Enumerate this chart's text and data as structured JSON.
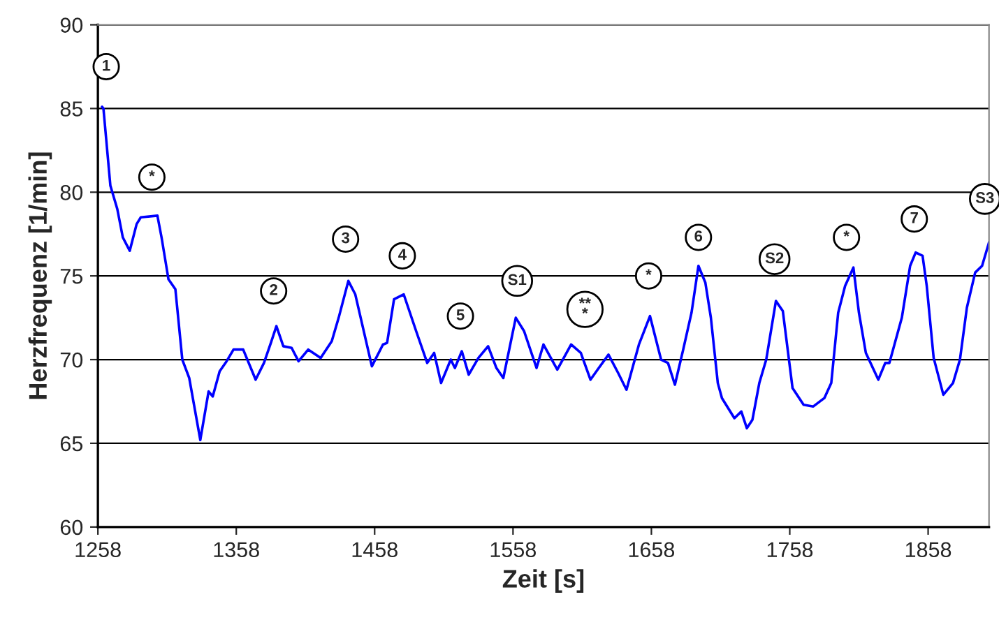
{
  "chart_data": {
    "type": "line",
    "xlabel": "Zeit [s]",
    "ylabel": "Herzfrequenz [1/min]",
    "x": [
      1261,
      1262,
      1267,
      1272,
      1276,
      1281,
      1286,
      1289,
      1301,
      1304,
      1309,
      1314,
      1319,
      1324,
      1332,
      1338,
      1341,
      1346,
      1351,
      1356,
      1363,
      1372,
      1378,
      1383,
      1387,
      1392,
      1398,
      1403,
      1410,
      1419,
      1427,
      1432,
      1439,
      1444,
      1456,
      1464,
      1467,
      1472,
      1479,
      1488,
      1496,
      1501,
      1506,
      1513,
      1516,
      1521,
      1526,
      1533,
      1540,
      1546,
      1551,
      1560,
      1566,
      1575,
      1580,
      1590,
      1600,
      1607,
      1614,
      1620,
      1627,
      1634,
      1640,
      1649,
      1657,
      1665,
      1670,
      1675,
      1681,
      1687,
      1692,
      1697,
      1701,
      1706,
      1709,
      1718,
      1723,
      1727,
      1731,
      1736,
      1741,
      1748,
      1753,
      1760,
      1768,
      1775,
      1783,
      1788,
      1793,
      1798,
      1804,
      1808,
      1813,
      1822,
      1827,
      1830,
      1839,
      1845,
      1849,
      1854,
      1857,
      1862,
      1869,
      1876,
      1881,
      1886,
      1892,
      1897,
      1902
    ],
    "series": [
      {
        "color": "#0000ff",
        "values": [
          85.1,
          85.0,
          80.4,
          79.0,
          77.3,
          76.5,
          78.1,
          78.5,
          78.6,
          77.3,
          74.8,
          74.2,
          70.0,
          68.9,
          65.2,
          68.1,
          67.8,
          69.3,
          69.9,
          70.6,
          70.6,
          68.8,
          69.8,
          71.0,
          72.0,
          70.8,
          70.7,
          69.9,
          70.6,
          70.1,
          71.1,
          72.5,
          74.7,
          73.9,
          69.6,
          70.9,
          71.0,
          73.6,
          73.9,
          71.7,
          69.8,
          70.4,
          68.6,
          70.0,
          69.5,
          70.5,
          69.1,
          70.1,
          70.8,
          69.5,
          68.9,
          72.5,
          71.7,
          69.5,
          70.9,
          69.4,
          70.9,
          70.4,
          68.8,
          69.5,
          70.3,
          69.2,
          68.2,
          70.9,
          72.6,
          70.0,
          69.8,
          68.5,
          70.6,
          72.8,
          75.6,
          74.6,
          72.5,
          68.6,
          67.7,
          66.5,
          66.9,
          65.9,
          66.4,
          68.6,
          70.0,
          73.5,
          72.9,
          68.3,
          67.3,
          67.2,
          67.7,
          68.6,
          72.8,
          74.4,
          75.5,
          72.8,
          70.4,
          68.8,
          69.8,
          69.8,
          72.5,
          75.6,
          76.4,
          76.2,
          74.4,
          70.1,
          67.9,
          68.6,
          70.0,
          73.1,
          75.2,
          75.6,
          77.0
        ]
      }
    ],
    "xlim": [
      1258,
      1902
    ],
    "xticks": [
      1258,
      1358,
      1458,
      1558,
      1658,
      1758,
      1858
    ],
    "ylim": [
      60,
      90
    ],
    "yticks": [
      60,
      65,
      70,
      75,
      80,
      85,
      90
    ],
    "grid": "y",
    "legend": false,
    "marker": "none",
    "line_style": "solid",
    "annotations": [
      {
        "text": "1",
        "x": 1264,
        "y": 87.5
      },
      {
        "text": "*",
        "x": 1297,
        "y": 80.9
      },
      {
        "text": "2",
        "x": 1385,
        "y": 74.1
      },
      {
        "text": "3",
        "x": 1437,
        "y": 77.2
      },
      {
        "text": "4",
        "x": 1478,
        "y": 76.2
      },
      {
        "text": "5",
        "x": 1520,
        "y": 72.6
      },
      {
        "text": "S1",
        "x": 1561,
        "y": 74.7
      },
      {
        "text": "**\n*",
        "x": 1610,
        "y": 73.0
      },
      {
        "text": "*",
        "x": 1656,
        "y": 75.0
      },
      {
        "text": "6",
        "x": 1692,
        "y": 77.3
      },
      {
        "text": "S2",
        "x": 1747,
        "y": 76.0
      },
      {
        "text": "*",
        "x": 1799,
        "y": 77.3
      },
      {
        "text": "7",
        "x": 1848,
        "y": 78.4
      },
      {
        "text": "S3",
        "x": 1899,
        "y": 79.6
      }
    ]
  }
}
